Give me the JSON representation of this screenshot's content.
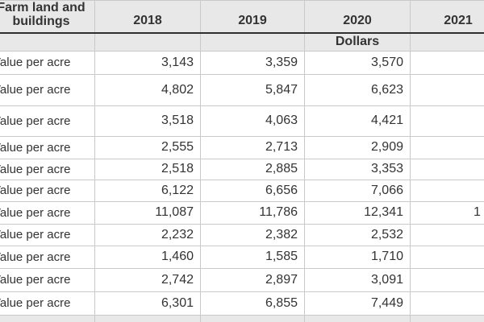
{
  "colors": {
    "header_bg": "#e8e8e8",
    "cell_border": "#c9c9c9",
    "strong_border": "#2f2f2f",
    "text": "#333333"
  },
  "table": {
    "header": {
      "row_dimension": "Farm land and buildings",
      "years": [
        "2018",
        "2019",
        "2020",
        "2021"
      ],
      "unit": "Dollars"
    },
    "rows": [
      {
        "label": "Value per acre",
        "y2018": "3,143",
        "y2019": "3,359",
        "y2020": "3,570",
        "y2021": ""
      },
      {
        "label": "Value per acre",
        "y2018": "4,802",
        "y2019": "5,847",
        "y2020": "6,623",
        "y2021": ""
      },
      {
        "label": "Value per acre",
        "y2018": "3,518",
        "y2019": "4,063",
        "y2020": "4,421",
        "y2021": ""
      },
      {
        "label": "Value per acre",
        "y2018": "2,555",
        "y2019": "2,713",
        "y2020": "2,909",
        "y2021": ""
      },
      {
        "label": "Value per acre",
        "y2018": "2,518",
        "y2019": "2,885",
        "y2020": "3,353",
        "y2021": ""
      },
      {
        "label": "Value per acre",
        "y2018": "6,122",
        "y2019": "6,656",
        "y2020": "7,066",
        "y2021": ""
      },
      {
        "label": "Value per acre",
        "y2018": "11,087",
        "y2019": "11,786",
        "y2020": "12,341",
        "y2021": "1"
      },
      {
        "label": "Value per acre",
        "y2018": "2,232",
        "y2019": "2,382",
        "y2020": "2,532",
        "y2021": ""
      },
      {
        "label": "Value per acre",
        "y2018": "1,460",
        "y2019": "1,585",
        "y2020": "1,710",
        "y2021": ""
      },
      {
        "label": "Value per acre",
        "y2018": "2,742",
        "y2019": "2,897",
        "y2020": "3,091",
        "y2021": ""
      },
      {
        "label": "Value per acre",
        "y2018": "6,301",
        "y2019": "6,855",
        "y2020": "7,449",
        "y2021": ""
      }
    ]
  }
}
